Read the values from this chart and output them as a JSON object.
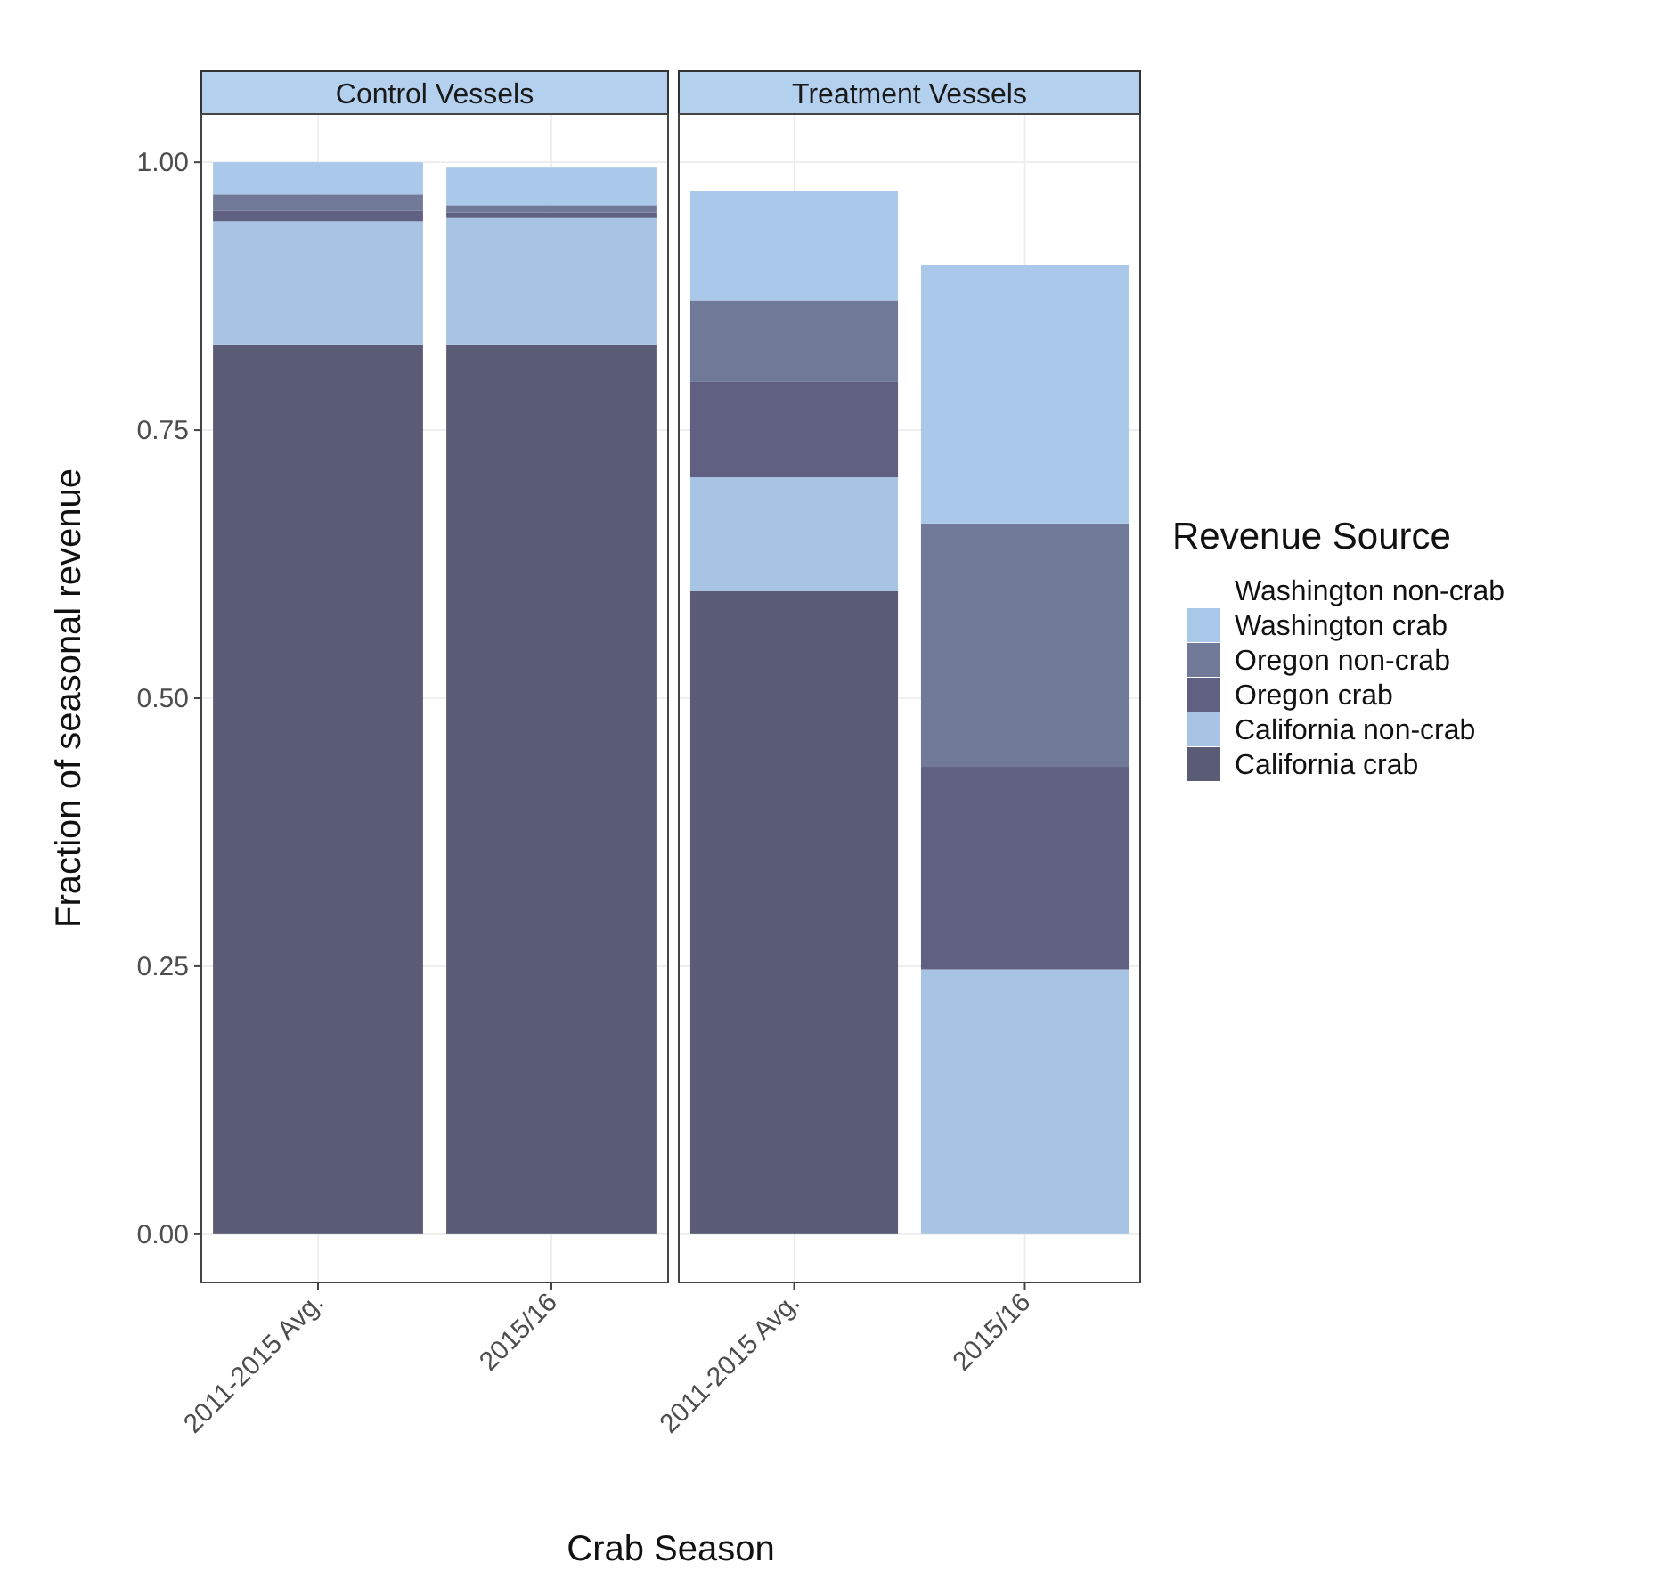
{
  "chart_data": [
    {
      "type": "bar",
      "title": "Control Vessels",
      "xlabel": "Crab Season",
      "ylabel": "Fraction of seasonal revenue",
      "categories": [
        "2011-2015 Avg.",
        "2015/16"
      ],
      "stacked": true,
      "ylim": [
        -0.045,
        1.045
      ],
      "yticks": [
        {
          "value": 0,
          "label": "0.00"
        },
        {
          "value": 0.25,
          "label": "0.25"
        },
        {
          "value": 0.5,
          "label": "0.50"
        },
        {
          "value": 0.75,
          "label": "0.75"
        },
        {
          "value": 1,
          "label": "1.00"
        }
      ],
      "grid": true,
      "legend": false,
      "series": [
        {
          "color": "#5a5b74",
          "values": [
            0.83,
            0.83
          ]
        },
        {
          "color": "#a7c4e4",
          "values": [
            0.115,
            0.118
          ]
        },
        {
          "color": "#5f6082",
          "values": [
            0.01,
            0.005
          ]
        },
        {
          "color": "#707a98",
          "values": [
            0.015,
            0.007
          ]
        },
        {
          "color": "#aac8ea",
          "values": [
            0.03,
            0.035
          ]
        }
      ]
    },
    {
      "type": "bar",
      "title": "Treatment Vessels",
      "legend_title": "Revenue Source",
      "categories": [
        "2011-2015 Avg.",
        "2015/16"
      ],
      "stacked": true,
      "ylim": [
        -0.045,
        1.045
      ],
      "yticks": [
        {
          "value": 0,
          "label": null
        },
        {
          "value": 0.25,
          "label": null
        },
        {
          "value": 0.5,
          "label": null
        },
        {
          "value": 0.75,
          "label": null
        },
        {
          "value": 1,
          "label": null
        }
      ],
      "tick_labels": "x",
      "grid": true,
      "legend": "right",
      "series": [
        {
          "name": "California crab",
          "color": "#5a5b74",
          "values": [
            0.6,
            0
          ]
        },
        {
          "name": "California non-crab",
          "color": "#a7c4e4",
          "values": [
            0.106,
            0.247
          ]
        },
        {
          "name": "Oregon crab",
          "color": "#5f6082",
          "values": [
            0.089,
            0.189
          ]
        },
        {
          "name": "Oregon non-crab",
          "color": "#707a98",
          "values": [
            0.076,
            0.227
          ]
        },
        {
          "name": "Washington crab",
          "color": "#aac8ea",
          "values": [
            0.102,
            0.241
          ]
        },
        {
          "name": "Washington non-crab",
          "values": [
            0,
            0
          ]
        }
      ]
    }
  ]
}
